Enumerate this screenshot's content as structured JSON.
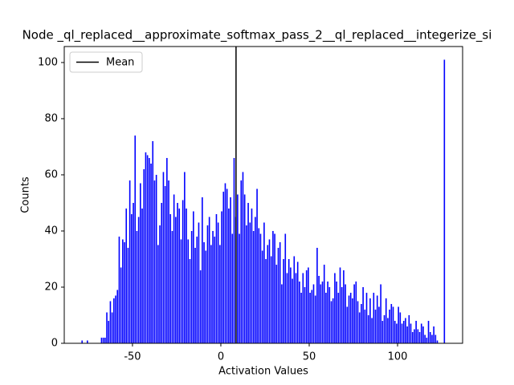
{
  "chart_data": {
    "type": "histogram",
    "title": "Node _ql_replaced__approximate_softmax_pass_2__ql_replaced__integerize_si",
    "xlabel": "Activation Values",
    "ylabel": "Counts",
    "bins": [
      -80,
      -79,
      -78,
      -77,
      -76,
      -75,
      -74,
      -73,
      -72,
      -71,
      -70,
      -69,
      -68,
      -67,
      -66,
      -65,
      -64,
      -63,
      -62,
      -61,
      -60,
      -59,
      -58,
      -57,
      -56,
      -55,
      -54,
      -53,
      -52,
      -51,
      -50,
      -49,
      -48,
      -47,
      -46,
      -45,
      -44,
      -43,
      -42,
      -41,
      -40,
      -39,
      -38,
      -37,
      -36,
      -35,
      -34,
      -33,
      -32,
      -31,
      -30,
      -29,
      -28,
      -27,
      -26,
      -25,
      -24,
      -23,
      -22,
      -21,
      -20,
      -19,
      -18,
      -17,
      -16,
      -15,
      -14,
      -13,
      -12,
      -11,
      -10,
      -9,
      -8,
      -7,
      -6,
      -5,
      -4,
      -3,
      -2,
      -1,
      0,
      1,
      2,
      3,
      4,
      5,
      6,
      7,
      8,
      9,
      10,
      11,
      12,
      13,
      14,
      15,
      16,
      17,
      18,
      19,
      20,
      21,
      22,
      23,
      24,
      25,
      26,
      27,
      28,
      29,
      30,
      31,
      32,
      33,
      34,
      35,
      36,
      37,
      38,
      39,
      40,
      41,
      42,
      43,
      44,
      45,
      46,
      47,
      48,
      49,
      50,
      51,
      52,
      53,
      54,
      55,
      56,
      57,
      58,
      59,
      60,
      61,
      62,
      63,
      64,
      65,
      66,
      67,
      68,
      69,
      70,
      71,
      72,
      73,
      74,
      75,
      76,
      77,
      78,
      79,
      80,
      81,
      82,
      83,
      84,
      85,
      86,
      87,
      88,
      89,
      90,
      91,
      92,
      93,
      94,
      95,
      96,
      97,
      98,
      99,
      100,
      101,
      102,
      103,
      104,
      105,
      106,
      107,
      108,
      109,
      110,
      111,
      112,
      113,
      114,
      115,
      116,
      117,
      118,
      119,
      120,
      121,
      122,
      123,
      124,
      125,
      126,
      127
    ],
    "values": [
      0,
      1,
      0,
      0,
      1,
      0,
      0,
      0,
      0,
      0,
      0,
      0,
      2,
      2,
      2,
      11,
      8,
      15,
      11,
      16,
      17,
      19,
      38,
      27,
      37,
      36,
      48,
      34,
      58,
      46,
      50,
      74,
      40,
      45,
      57,
      48,
      62,
      68,
      67,
      66,
      64,
      72,
      58,
      60,
      35,
      42,
      50,
      61,
      56,
      66,
      58,
      46,
      40,
      53,
      45,
      50,
      48,
      37,
      51,
      61,
      48,
      37,
      30,
      40,
      47,
      34,
      38,
      43,
      26,
      52,
      36,
      33,
      42,
      45,
      35,
      40,
      38,
      46,
      43,
      35,
      47,
      54,
      57,
      55,
      48,
      52,
      39,
      66,
      45,
      53,
      39,
      58,
      61,
      53,
      42,
      50,
      43,
      48,
      40,
      45,
      55,
      41,
      39,
      33,
      43,
      30,
      35,
      37,
      31,
      40,
      39,
      28,
      34,
      36,
      21,
      30,
      39,
      25,
      30,
      27,
      23,
      31,
      25,
      29,
      22,
      18,
      25,
      20,
      26,
      27,
      18,
      19,
      21,
      17,
      34,
      24,
      21,
      22,
      28,
      18,
      22,
      20,
      15,
      16,
      25,
      22,
      18,
      27,
      20,
      26,
      21,
      13,
      17,
      18,
      16,
      21,
      22,
      15,
      11,
      14,
      20,
      12,
      18,
      10,
      16,
      9,
      18,
      12,
      17,
      13,
      21,
      8,
      10,
      16,
      9,
      12,
      14,
      13,
      8,
      7,
      13,
      11,
      7,
      8,
      9,
      6,
      10,
      7,
      4,
      5,
      8,
      5,
      4,
      7,
      6,
      3,
      2,
      8,
      4,
      3,
      6,
      3,
      1,
      0,
      0,
      0,
      101
    ],
    "color": "#0000ff",
    "mean": {
      "name": "Mean",
      "value": 8.6,
      "color": "#000000"
    },
    "legend": "upper left",
    "xlim": [
      -88.6,
      136.8
    ],
    "xticks": [
      -50,
      0,
      50,
      100
    ],
    "ylim": [
      0,
      105.7
    ],
    "yticks": [
      0,
      20,
      40,
      60,
      80,
      100
    ]
  }
}
